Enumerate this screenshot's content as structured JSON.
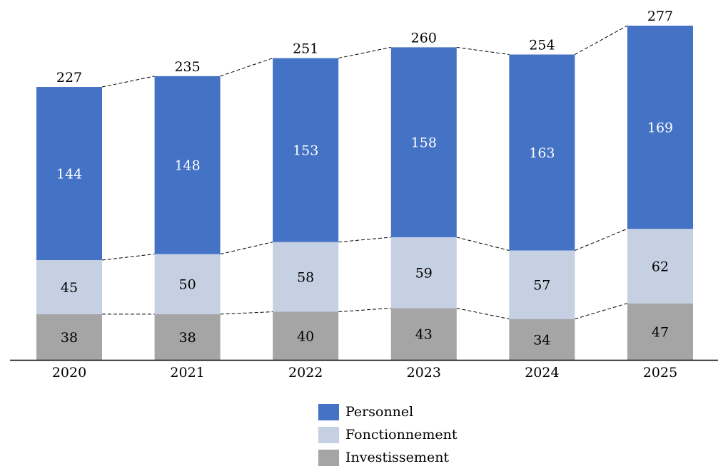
{
  "chart_data": {
    "type": "bar",
    "stacked": true,
    "categories": [
      "2020",
      "2021",
      "2022",
      "2023",
      "2024",
      "2025"
    ],
    "series": [
      {
        "name": "Investissement",
        "values": [
          38,
          38,
          40,
          43,
          34,
          47
        ],
        "color": "#a5a5a5",
        "label_color": "#000000"
      },
      {
        "name": "Fonctionnement",
        "values": [
          45,
          50,
          58,
          59,
          57,
          62
        ],
        "color": "#c5d0e3",
        "label_color": "#000000"
      },
      {
        "name": "Personnel",
        "values": [
          144,
          148,
          153,
          158,
          163,
          169
        ],
        "color": "#4472c4",
        "label_color": "#ffffff"
      }
    ],
    "totals": [
      227,
      235,
      251,
      260,
      254,
      277
    ],
    "legend_order": [
      "Personnel",
      "Fonctionnement",
      "Investissement"
    ],
    "connector_lines": "dashed",
    "grid": false,
    "legend_position": "bottom-center",
    "title": "",
    "xlabel": "",
    "ylabel": "",
    "ylim": [
      0,
      285
    ]
  }
}
